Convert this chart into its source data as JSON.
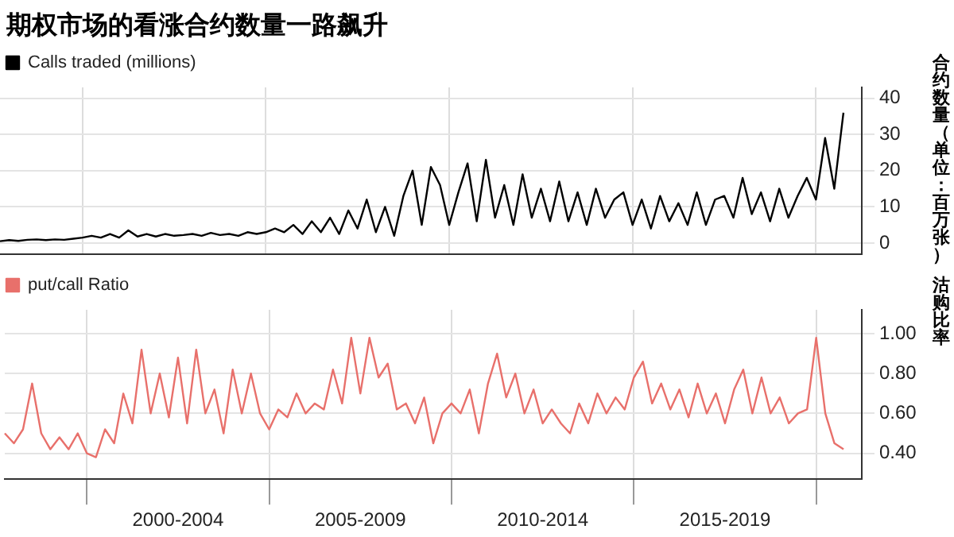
{
  "chart_data": [
    {
      "type": "line",
      "title": "期权市场的看涨合约数量一路飙升",
      "ylabel": "合约数量（单位：百万张）",
      "legend": "top left",
      "grid": true,
      "marker": "none",
      "tick_labels": "y",
      "categories": [
        null,
        null,
        null,
        null,
        null,
        null,
        null,
        null,
        null,
        null,
        null,
        null,
        null,
        null,
        null,
        null,
        null,
        null,
        null,
        null,
        null,
        null,
        null,
        null,
        null,
        null,
        null,
        null,
        null,
        null,
        null,
        null,
        null,
        null,
        null,
        null,
        null,
        null,
        null,
        null,
        null,
        null,
        null,
        null,
        null,
        null,
        null,
        null,
        null,
        null,
        null,
        null,
        null,
        null,
        null,
        null,
        null,
        null,
        null,
        null,
        null,
        null,
        null,
        null,
        null,
        null,
        null,
        null,
        null,
        null,
        null,
        null,
        null,
        null,
        null,
        null,
        null,
        null,
        null,
        null,
        null,
        null,
        null,
        null,
        null,
        null,
        null,
        null,
        null,
        null,
        null,
        null,
        null,
        null,
        null
      ],
      "ylim": [
        -3,
        43
      ],
      "yticks": [
        0,
        10,
        20,
        30,
        40
      ],
      "series": [
        {
          "name": "Calls traded (millions)",
          "color": "#000000",
          "values": [
            0.5,
            0.8,
            0.6,
            0.9,
            1,
            0.8,
            1,
            0.9,
            1.2,
            1.5,
            2,
            1.5,
            2.5,
            1.5,
            3.5,
            1.8,
            2.5,
            1.8,
            2.5,
            2,
            2.2,
            2.5,
            2,
            2.8,
            2.2,
            2.5,
            2,
            3,
            2.5,
            3,
            4,
            3,
            5,
            2.5,
            6,
            3,
            7,
            2.5,
            9,
            4,
            12,
            3,
            10,
            2,
            13,
            20,
            5,
            21,
            16,
            5,
            14,
            22,
            6,
            23,
            7,
            16,
            5,
            19,
            7,
            15,
            6,
            17,
            6,
            14,
            5,
            15,
            7,
            12,
            14,
            5,
            12,
            4,
            13,
            6,
            11,
            5,
            14,
            5,
            12,
            13,
            7,
            18,
            8,
            14,
            6,
            15,
            7,
            13,
            18,
            12,
            29,
            15,
            36,
            null,
            null
          ]
        }
      ]
    },
    {
      "type": "line",
      "ylabel": "沽购比率",
      "legend": "top left",
      "grid": true,
      "marker": "none",
      "categories": [
        null,
        null,
        null,
        null,
        null,
        null,
        null,
        null,
        null,
        null,
        null,
        null,
        null,
        null,
        null,
        null,
        null,
        null,
        null,
        "2000-2004",
        null,
        null,
        null,
        null,
        null,
        null,
        null,
        null,
        null,
        null,
        null,
        null,
        null,
        null,
        null,
        null,
        null,
        null,
        null,
        "2005-2009",
        null,
        null,
        null,
        null,
        null,
        null,
        null,
        null,
        null,
        null,
        null,
        null,
        null,
        null,
        null,
        null,
        null,
        null,
        null,
        "2010-2014",
        null,
        null,
        null,
        null,
        null,
        null,
        null,
        null,
        null,
        null,
        null,
        null,
        null,
        null,
        null,
        null,
        null,
        null,
        null,
        "2015-2019",
        null,
        null,
        null,
        null,
        null,
        null,
        null,
        null,
        null,
        null,
        null,
        null,
        null,
        null,
        null
      ],
      "ylim": [
        0.27,
        1.12
      ],
      "yticks": [
        {
          "value": 0.4,
          "label": "0.40"
        },
        {
          "value": 0.6,
          "label": "0.60"
        },
        {
          "value": 0.8,
          "label": "0.80"
        },
        {
          "value": 1.0,
          "label": "1.00"
        }
      ],
      "series": [
        {
          "name": "put/call Ratio",
          "color": "#e8706b",
          "values": [
            0.5,
            0.45,
            0.52,
            0.75,
            0.5,
            0.42,
            0.48,
            0.42,
            0.5,
            0.4,
            0.38,
            0.52,
            0.45,
            0.7,
            0.55,
            0.92,
            0.6,
            0.8,
            0.58,
            0.88,
            0.55,
            0.92,
            0.6,
            0.72,
            0.5,
            0.82,
            0.6,
            0.8,
            0.6,
            0.52,
            0.62,
            0.58,
            0.7,
            0.6,
            0.65,
            0.62,
            0.82,
            0.65,
            0.98,
            0.7,
            0.98,
            0.78,
            0.85,
            0.62,
            0.65,
            0.55,
            0.68,
            0.45,
            0.6,
            0.65,
            0.6,
            0.72,
            0.5,
            0.75,
            0.9,
            0.68,
            0.8,
            0.6,
            0.72,
            0.55,
            0.62,
            0.55,
            0.5,
            0.65,
            0.55,
            0.7,
            0.6,
            0.68,
            0.62,
            0.78,
            0.86,
            0.65,
            0.75,
            0.62,
            0.72,
            0.58,
            0.75,
            0.6,
            0.7,
            0.55,
            0.72,
            0.82,
            0.6,
            0.78,
            0.6,
            0.68,
            0.55,
            0.6,
            0.62,
            0.98,
            0.6,
            0.45,
            0.42,
            null,
            null
          ]
        }
      ]
    }
  ]
}
